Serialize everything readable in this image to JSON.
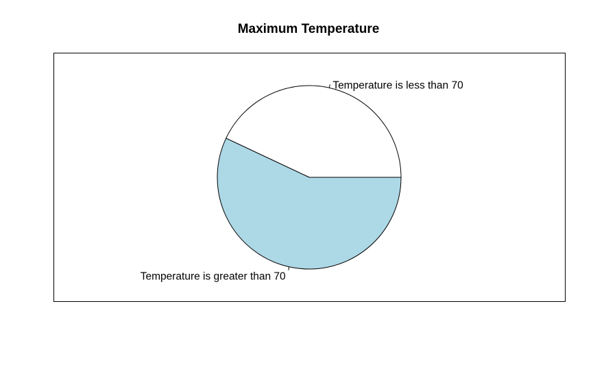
{
  "chart_data": {
    "type": "pie",
    "title": "Maximum Temperature",
    "categories": [
      "Temperature is less than 70",
      "Temperature is greater than 70"
    ],
    "values": [
      0.43,
      0.57
    ],
    "colors": [
      "#ffffff",
      "#add8e6"
    ],
    "start_angle_deg": 0,
    "direction": "counterclockwise",
    "border_color": "#000000",
    "legend": "none"
  }
}
